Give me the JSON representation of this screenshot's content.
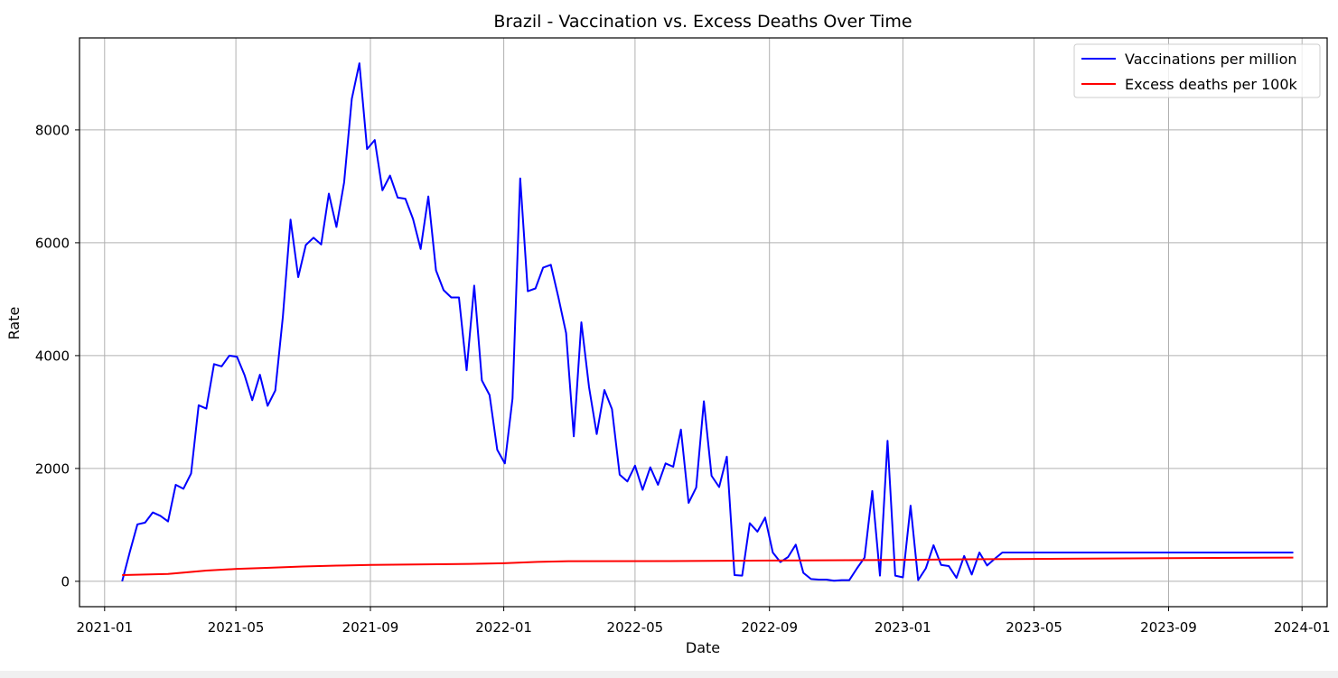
{
  "chart_data": {
    "type": "line",
    "title": "Brazil - Vaccination vs. Excess Deaths Over Time",
    "xlabel": "Date",
    "ylabel": "Rate",
    "x_tick_labels": [
      "2021-01",
      "2021-05",
      "2021-09",
      "2022-01",
      "2022-05",
      "2022-09",
      "2023-01",
      "2023-05",
      "2023-09",
      "2024-01"
    ],
    "x_ticks": [
      "2021-01-01",
      "2021-05-01",
      "2021-09-01",
      "2022-01-01",
      "2022-05-01",
      "2022-09-01",
      "2023-01-01",
      "2023-05-01",
      "2023-09-01",
      "2024-01-01"
    ],
    "xlim": [
      "2020-12-09",
      "2024-01-24"
    ],
    "y_ticks": [
      0,
      2000,
      4000,
      6000,
      8000
    ],
    "ylim": [
      -450,
      9630
    ],
    "grid": true,
    "legend_position": "upper right",
    "series": [
      {
        "name": "Vaccinations per million",
        "color": "#0000ff",
        "x": [
          "2021-01-17",
          "2021-01-24",
          "2021-01-31",
          "2021-02-07",
          "2021-02-14",
          "2021-02-21",
          "2021-02-28",
          "2021-03-07",
          "2021-03-14",
          "2021-03-21",
          "2021-03-28",
          "2021-04-04",
          "2021-04-11",
          "2021-04-18",
          "2021-04-25",
          "2021-05-02",
          "2021-05-09",
          "2021-05-16",
          "2021-05-23",
          "2021-05-30",
          "2021-06-06",
          "2021-06-13",
          "2021-06-20",
          "2021-06-27",
          "2021-07-04",
          "2021-07-11",
          "2021-07-18",
          "2021-07-25",
          "2021-08-01",
          "2021-08-08",
          "2021-08-15",
          "2021-08-22",
          "2021-08-29",
          "2021-09-05",
          "2021-09-12",
          "2021-09-19",
          "2021-09-26",
          "2021-10-03",
          "2021-10-10",
          "2021-10-17",
          "2021-10-24",
          "2021-10-31",
          "2021-11-07",
          "2021-11-14",
          "2021-11-21",
          "2021-11-28",
          "2021-12-05",
          "2021-12-12",
          "2021-12-19",
          "2021-12-26",
          "2022-01-02",
          "2022-01-09",
          "2022-01-16",
          "2022-01-23",
          "2022-01-30",
          "2022-02-06",
          "2022-02-13",
          "2022-02-20",
          "2022-02-27",
          "2022-03-06",
          "2022-03-13",
          "2022-03-20",
          "2022-03-27",
          "2022-04-03",
          "2022-04-10",
          "2022-04-17",
          "2022-04-24",
          "2022-05-01",
          "2022-05-08",
          "2022-05-15",
          "2022-05-22",
          "2022-05-29",
          "2022-06-05",
          "2022-06-12",
          "2022-06-19",
          "2022-06-26",
          "2022-07-03",
          "2022-07-10",
          "2022-07-17",
          "2022-07-24",
          "2022-07-31",
          "2022-08-07",
          "2022-08-14",
          "2022-08-21",
          "2022-08-28",
          "2022-09-04",
          "2022-09-11",
          "2022-09-18",
          "2022-09-25",
          "2022-10-02",
          "2022-10-09",
          "2022-10-16",
          "2022-10-23",
          "2022-10-30",
          "2022-11-06",
          "2022-11-13",
          "2022-11-20",
          "2022-11-27",
          "2022-12-04",
          "2022-12-11",
          "2022-12-18",
          "2022-12-25",
          "2023-01-01",
          "2023-01-08",
          "2023-01-15",
          "2023-01-22",
          "2023-01-29",
          "2023-02-05",
          "2023-02-12",
          "2023-02-19",
          "2023-02-26",
          "2023-03-05",
          "2023-03-12",
          "2023-03-19",
          "2023-03-26",
          "2023-04-02",
          "2023-12-24"
        ],
        "values": [
          0,
          520,
          1010,
          1040,
          1220,
          1160,
          1060,
          1710,
          1640,
          1910,
          3120,
          3060,
          3850,
          3810,
          4000,
          3980,
          3650,
          3210,
          3660,
          3110,
          3380,
          4690,
          6410,
          5390,
          5960,
          6090,
          5970,
          6870,
          6280,
          7070,
          8550,
          9180,
          7660,
          7820,
          6930,
          7190,
          6800,
          6780,
          6420,
          5890,
          6820,
          5510,
          5160,
          5030,
          5030,
          3740,
          5240,
          3560,
          3300,
          2330,
          2090,
          3240,
          7140,
          5140,
          5190,
          5560,
          5610,
          5030,
          4400,
          2570,
          4590,
          3440,
          2610,
          3390,
          3050,
          1890,
          1770,
          2050,
          1620,
          2020,
          1710,
          2090,
          2030,
          2690,
          1390,
          1660,
          3190,
          1870,
          1670,
          2210,
          110,
          100,
          1030,
          880,
          1130,
          510,
          340,
          430,
          650,
          150,
          40,
          30,
          30,
          10,
          20,
          20,
          230,
          420,
          1600,
          100,
          2490,
          100,
          70,
          1340,
          20,
          230,
          640,
          290,
          270,
          60,
          450,
          120,
          510,
          280,
          400,
          510,
          510
        ]
      },
      {
        "name": "Excess deaths per 100k",
        "color": "#ff0000",
        "x": [
          "2021-01-17",
          "2021-02-28",
          "2021-04-04",
          "2021-05-02",
          "2021-06-01",
          "2021-07-01",
          "2021-08-01",
          "2021-09-01",
          "2021-10-01",
          "2021-11-01",
          "2021-12-01",
          "2022-01-01",
          "2022-02-01",
          "2022-03-01",
          "2022-06-01",
          "2022-09-01",
          "2022-12-01",
          "2023-03-01",
          "2023-06-01",
          "2023-09-01",
          "2023-12-24"
        ],
        "values": [
          110,
          130,
          190,
          220,
          240,
          262,
          278,
          290,
          296,
          302,
          308,
          320,
          343,
          356,
          358,
          367,
          375,
          390,
          400,
          410,
          420
        ]
      }
    ]
  }
}
